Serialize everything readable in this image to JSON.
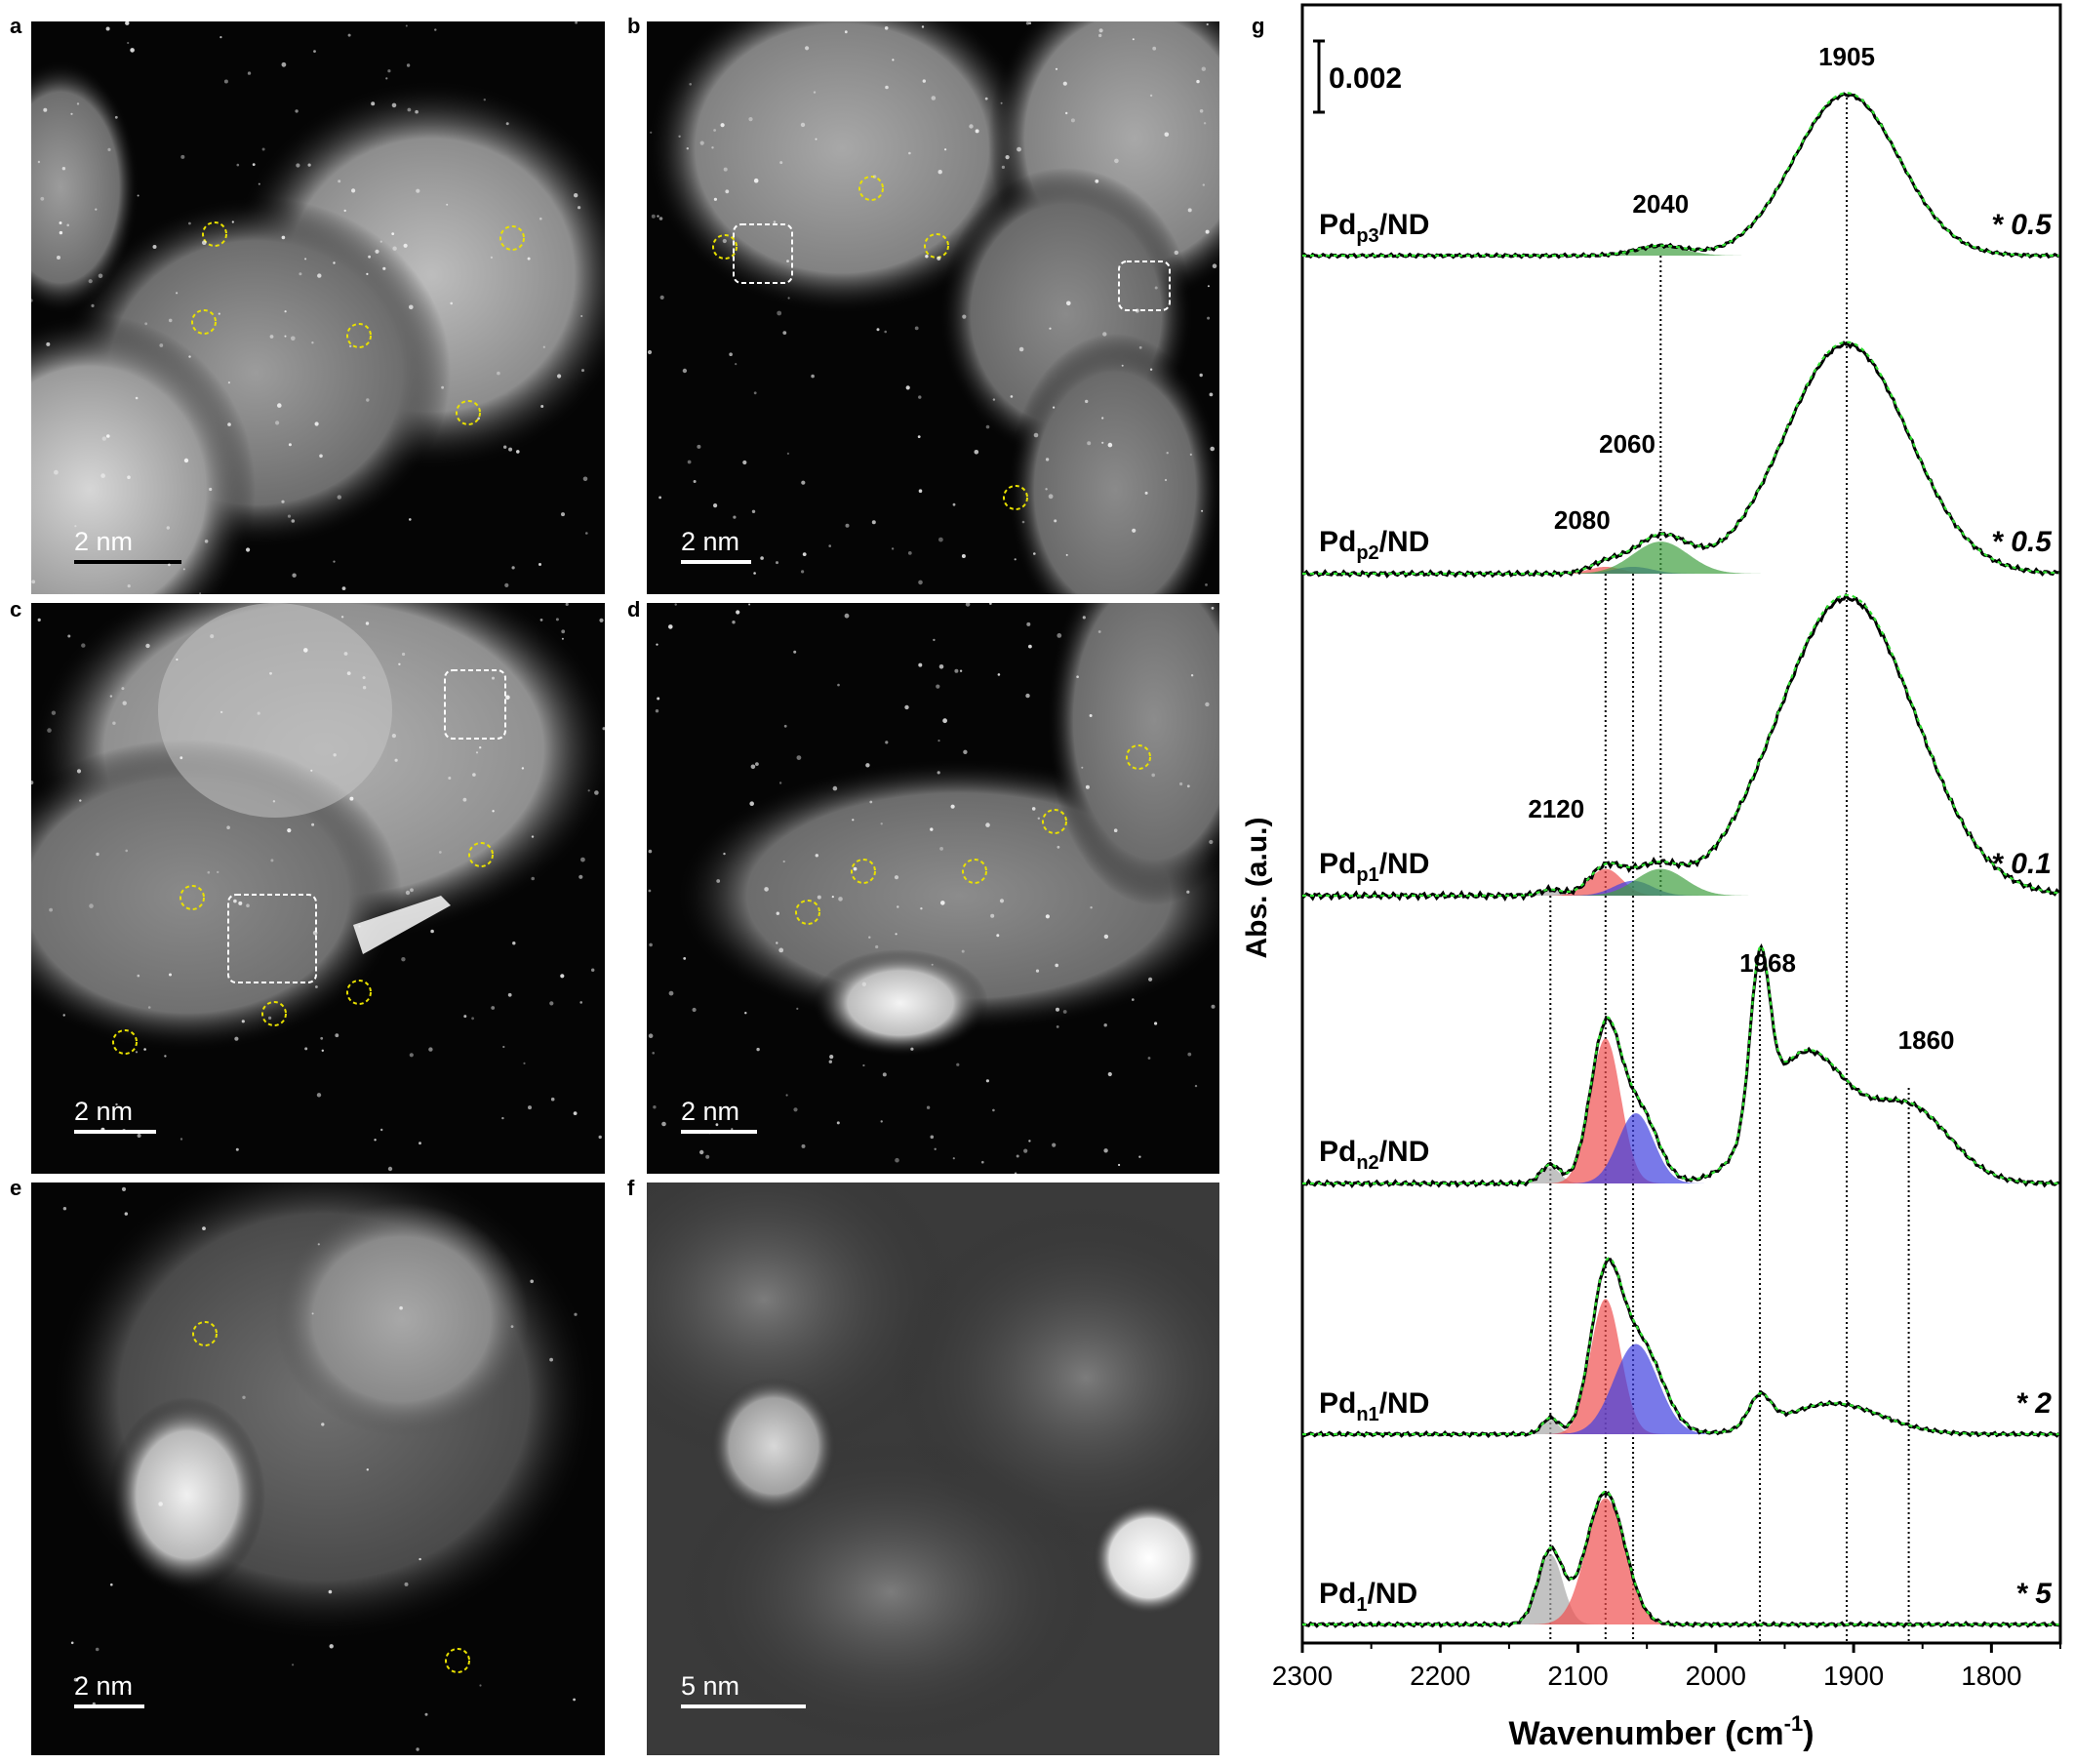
{
  "figure": {
    "panels": [
      {
        "id": "a",
        "label": "a",
        "scale_bar": "2 nm",
        "bar_color": "#000000",
        "label_color": "#ffffff",
        "circles": 6,
        "squares": 0
      },
      {
        "id": "b",
        "label": "b",
        "scale_bar": "2 nm",
        "bar_color": "#ffffff",
        "label_color": "#ffffff",
        "circles": 5,
        "squares": 2
      },
      {
        "id": "c",
        "label": "c",
        "scale_bar": "2 nm",
        "bar_color": "#ffffff",
        "label_color": "#ffffff",
        "circles": 5,
        "squares": 2
      },
      {
        "id": "d",
        "label": "d",
        "scale_bar": "2 nm",
        "bar_color": "#ffffff",
        "label_color": "#ffffff",
        "circles": 5,
        "squares": 0
      },
      {
        "id": "e",
        "label": "e",
        "scale_bar": "2 nm",
        "bar_color": "#ffffff",
        "label_color": "#ffffff",
        "circles": 2,
        "squares": 0
      },
      {
        "id": "f",
        "label": "f",
        "scale_bar": "5 nm",
        "bar_color": "#ffffff",
        "label_color": "#ffffff",
        "circles": 0,
        "squares": 0
      }
    ],
    "marker_colors": {
      "circle": "#e8e000",
      "square": "#ffffff"
    }
  },
  "chart_data": {
    "type": "line",
    "panel_label": "g",
    "xlabel": "Wavenumber (cm",
    "xlabel_sup": "-1",
    "xlabel_close": ")",
    "ylabel": "Abs. (a.u.)",
    "xlim": [
      2300,
      1750
    ],
    "xticks": [
      2300,
      2200,
      2100,
      2000,
      1900,
      1800
    ],
    "scale_bar_label": "0.002",
    "peak_lines": [
      2120,
      2080,
      2060,
      2040,
      1968,
      1905,
      1860
    ],
    "peak_labels": [
      {
        "text": "1905",
        "x": 1905,
        "spectrum": "Pdp3"
      },
      {
        "text": "2040",
        "x": 2040,
        "spectrum": "Pdp3"
      },
      {
        "text": "2060",
        "x": 2060,
        "spectrum": "Pdp2"
      },
      {
        "text": "2080",
        "x": 2080,
        "spectrum": "Pdp2"
      },
      {
        "text": "2120",
        "x": 2120,
        "spectrum": "Pdp1"
      },
      {
        "text": "1968",
        "x": 1968,
        "spectrum": "Pdn2"
      },
      {
        "text": "1860",
        "x": 1860,
        "spectrum": "Pdn2"
      }
    ],
    "fit_colors": {
      "2120": "#a8a8a8",
      "2080": "#f05050",
      "2060": "#4040e0",
      "2040": "#40a040",
      "fit_line": "#30e030",
      "data_line": "#000000"
    },
    "series": [
      {
        "id": "Pdp3",
        "name_main": "Pd",
        "name_sub": "p3",
        "name_tail": "/ND",
        "multiplier": "* 0.5",
        "bands": [
          {
            "center": 1905,
            "amp": 1.0,
            "width": 38
          },
          {
            "center": 2040,
            "amp": 0.06,
            "width": 18
          }
        ],
        "fit_components": [
          {
            "center": 2040,
            "amp": 0.06,
            "width": 18,
            "color_key": "2040"
          }
        ]
      },
      {
        "id": "Pdp2",
        "name_main": "Pd",
        "name_sub": "p2",
        "name_tail": "/ND",
        "multiplier": "* 0.5",
        "bands": [
          {
            "center": 1905,
            "amp": 1.0,
            "width": 45
          },
          {
            "center": 2040,
            "amp": 0.16,
            "width": 20
          },
          {
            "center": 2080,
            "amp": 0.04,
            "width": 12
          }
        ],
        "fit_components": [
          {
            "center": 2080,
            "amp": 0.03,
            "width": 12,
            "color_key": "2080"
          },
          {
            "center": 2060,
            "amp": 0.03,
            "width": 14,
            "color_key": "2060"
          },
          {
            "center": 2040,
            "amp": 0.14,
            "width": 20,
            "color_key": "2040"
          }
        ]
      },
      {
        "id": "Pdp1",
        "name_main": "Pd",
        "name_sub": "p1",
        "name_tail": "/ND",
        "multiplier": "* 0.1",
        "bands": [
          {
            "center": 1905,
            "amp": 1.0,
            "width": 50
          },
          {
            "center": 2080,
            "amp": 0.09,
            "width": 12
          },
          {
            "center": 2045,
            "amp": 0.09,
            "width": 18
          },
          {
            "center": 2120,
            "amp": 0.02,
            "width": 8
          }
        ],
        "fit_components": [
          {
            "center": 2120,
            "amp": 0.02,
            "width": 8,
            "color_key": "2120"
          },
          {
            "center": 2080,
            "amp": 0.09,
            "width": 12,
            "color_key": "2080"
          },
          {
            "center": 2060,
            "amp": 0.05,
            "width": 14,
            "color_key": "2060"
          },
          {
            "center": 2040,
            "amp": 0.09,
            "width": 18,
            "color_key": "2040"
          }
        ]
      },
      {
        "id": "Pdn2",
        "name_main": "Pd",
        "name_sub": "n2",
        "name_tail": "/ND",
        "multiplier": "",
        "bands": [
          {
            "center": 2080,
            "amp": 0.65,
            "width": 11
          },
          {
            "center": 2055,
            "amp": 0.3,
            "width": 13
          },
          {
            "center": 2120,
            "amp": 0.08,
            "width": 7
          },
          {
            "center": 1968,
            "amp": 0.7,
            "width": 7
          },
          {
            "center": 1935,
            "amp": 0.55,
            "width": 30
          },
          {
            "center": 1860,
            "amp": 0.32,
            "width": 30
          }
        ],
        "fit_components": [
          {
            "center": 2120,
            "amp": 0.07,
            "width": 7,
            "color_key": "2120"
          },
          {
            "center": 2080,
            "amp": 0.62,
            "width": 11,
            "color_key": "2080"
          },
          {
            "center": 2058,
            "amp": 0.3,
            "width": 13,
            "color_key": "2060"
          }
        ]
      },
      {
        "id": "Pdn1",
        "name_main": "Pd",
        "name_sub": "n1",
        "name_tail": "/ND",
        "multiplier": "* 2",
        "bands": [
          {
            "center": 2080,
            "amp": 0.8,
            "width": 11
          },
          {
            "center": 2055,
            "amp": 0.5,
            "width": 16
          },
          {
            "center": 2120,
            "amp": 0.09,
            "width": 6
          },
          {
            "center": 1968,
            "amp": 0.17,
            "width": 8
          },
          {
            "center": 1915,
            "amp": 0.17,
            "width": 35
          }
        ],
        "fit_components": [
          {
            "center": 2120,
            "amp": 0.08,
            "width": 6,
            "color_key": "2120"
          },
          {
            "center": 2080,
            "amp": 0.75,
            "width": 11,
            "color_key": "2080"
          },
          {
            "center": 2058,
            "amp": 0.5,
            "width": 16,
            "color_key": "2060"
          }
        ]
      },
      {
        "id": "Pd1",
        "name_main": "Pd",
        "name_sub": "1",
        "name_tail": "/ND",
        "multiplier": "* 5",
        "bands": [
          {
            "center": 2080,
            "amp": 0.75,
            "width": 14
          },
          {
            "center": 2120,
            "amp": 0.42,
            "width": 9
          }
        ],
        "fit_components": [
          {
            "center": 2120,
            "amp": 0.4,
            "width": 9,
            "color_key": "2120"
          },
          {
            "center": 2080,
            "amp": 0.72,
            "width": 14,
            "color_key": "2080"
          }
        ]
      }
    ]
  }
}
